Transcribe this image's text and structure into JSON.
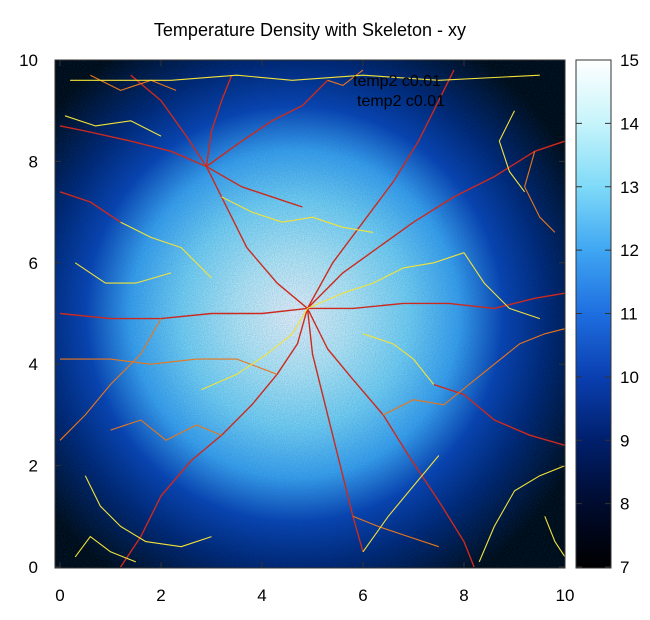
{
  "chart_data": {
    "type": "heatmap",
    "title": "Temperature Density with Skeleton - xy",
    "xlabel": "",
    "ylabel": "",
    "xlim": [
      0,
      10
    ],
    "ylim": [
      0,
      10
    ],
    "x_ticks": [
      0,
      2,
      4,
      6,
      8,
      10
    ],
    "y_ticks": [
      0,
      2,
      4,
      6,
      8,
      10
    ],
    "colorbar": {
      "range": [
        7,
        15
      ],
      "ticks": [
        7,
        8,
        9,
        10,
        11,
        12,
        13,
        14,
        15
      ],
      "colormap": [
        "#000000",
        "#000b2e",
        "#001f6b",
        "#0a3fb0",
        "#1e6ee0",
        "#3fa6f2",
        "#7fdaf8",
        "#c6f4fb",
        "#ffffff"
      ]
    },
    "density": {
      "peak_center": [
        4.7,
        5.0
      ],
      "peak_value": 15,
      "background_value": 7
    },
    "legend": {
      "placement": "top-center",
      "entries": [
        "temp2 c0.01",
        "temp2 c0.01"
      ]
    },
    "skeleton_colors": {
      "red": "#cc2a1e",
      "orange": "#e8761c",
      "yellow": "#f2e23a"
    },
    "skeleton": [
      {
        "color": "red",
        "points": [
          [
            4.9,
            5.1
          ],
          [
            4.3,
            5.6
          ],
          [
            3.7,
            6.3
          ],
          [
            3.2,
            7.3
          ],
          [
            2.9,
            7.9
          ]
        ]
      },
      {
        "color": "red",
        "points": [
          [
            2.9,
            7.9
          ],
          [
            3.0,
            8.6
          ],
          [
            3.2,
            9.2
          ],
          [
            3.4,
            9.7
          ]
        ]
      },
      {
        "color": "red",
        "points": [
          [
            2.9,
            7.9
          ],
          [
            2.2,
            8.2
          ],
          [
            1.4,
            8.4
          ],
          [
            0.5,
            8.6
          ],
          [
            0,
            8.7
          ]
        ]
      },
      {
        "color": "red",
        "points": [
          [
            2.9,
            7.9
          ],
          [
            3.6,
            8.4
          ],
          [
            4.2,
            8.8
          ],
          [
            4.8,
            9.1
          ],
          [
            5.3,
            9.6
          ]
        ]
      },
      {
        "color": "red",
        "points": [
          [
            2.9,
            7.9
          ],
          [
            2.5,
            8.5
          ],
          [
            2.0,
            9.2
          ],
          [
            1.4,
            9.7
          ]
        ]
      },
      {
        "color": "red",
        "points": [
          [
            4.9,
            5.1
          ],
          [
            5.6,
            5.8
          ],
          [
            6.3,
            6.3
          ],
          [
            7.0,
            6.8
          ],
          [
            7.8,
            7.3
          ],
          [
            8.6,
            7.7
          ],
          [
            9.4,
            8.2
          ],
          [
            10,
            8.4
          ]
        ]
      },
      {
        "color": "red",
        "points": [
          [
            4.9,
            5.1
          ],
          [
            4.0,
            5.0
          ],
          [
            3.0,
            5.0
          ],
          [
            2.0,
            4.9
          ],
          [
            1.0,
            4.9
          ],
          [
            0,
            5.0
          ]
        ]
      },
      {
        "color": "red",
        "points": [
          [
            4.9,
            5.1
          ],
          [
            5.8,
            5.1
          ],
          [
            6.8,
            5.2
          ],
          [
            7.7,
            5.2
          ],
          [
            8.6,
            5.1
          ],
          [
            9.4,
            5.3
          ],
          [
            10,
            5.4
          ]
        ]
      },
      {
        "color": "red",
        "points": [
          [
            4.9,
            5.1
          ],
          [
            4.7,
            4.4
          ],
          [
            4.3,
            3.8
          ],
          [
            3.8,
            3.2
          ],
          [
            3.2,
            2.6
          ],
          [
            2.6,
            2.1
          ],
          [
            2.0,
            1.4
          ],
          [
            1.6,
            0.6
          ],
          [
            1.2,
            0
          ]
        ]
      },
      {
        "color": "red",
        "points": [
          [
            4.9,
            5.1
          ],
          [
            5.3,
            4.3
          ],
          [
            5.8,
            3.7
          ],
          [
            6.4,
            3.0
          ],
          [
            6.9,
            2.2
          ],
          [
            7.5,
            1.3
          ],
          [
            8.0,
            0.5
          ],
          [
            8.2,
            0
          ]
        ]
      },
      {
        "color": "red",
        "points": [
          [
            4.9,
            5.1
          ],
          [
            5.0,
            4.2
          ],
          [
            5.2,
            3.4
          ],
          [
            5.4,
            2.6
          ],
          [
            5.6,
            1.8
          ],
          [
            5.8,
            1.0
          ],
          [
            6.0,
            0.3
          ]
        ]
      },
      {
        "color": "red",
        "points": [
          [
            4.9,
            5.1
          ],
          [
            5.4,
            6.0
          ],
          [
            6.0,
            6.8
          ],
          [
            6.6,
            7.6
          ],
          [
            7.1,
            8.4
          ],
          [
            7.5,
            9.2
          ],
          [
            7.8,
            9.8
          ]
        ]
      },
      {
        "color": "red",
        "points": [
          [
            2.9,
            7.9
          ],
          [
            3.6,
            7.5
          ],
          [
            4.2,
            7.3
          ],
          [
            4.8,
            7.1
          ]
        ]
      },
      {
        "color": "red",
        "points": [
          [
            0,
            7.4
          ],
          [
            0.6,
            7.2
          ],
          [
            1.2,
            6.8
          ]
        ]
      },
      {
        "color": "red",
        "points": [
          [
            10,
            2.4
          ],
          [
            9.3,
            2.6
          ],
          [
            8.6,
            2.9
          ],
          [
            8.0,
            3.4
          ],
          [
            7.4,
            3.6
          ]
        ]
      },
      {
        "color": "orange",
        "points": [
          [
            5.3,
            9.6
          ],
          [
            5.6,
            9.5
          ],
          [
            6.0,
            9.8
          ]
        ]
      },
      {
        "color": "orange",
        "points": [
          [
            6.4,
            3.0
          ],
          [
            7.0,
            3.3
          ],
          [
            7.6,
            3.2
          ],
          [
            8.1,
            3.6
          ],
          [
            8.6,
            4.0
          ],
          [
            9.1,
            4.4
          ],
          [
            9.6,
            4.6
          ],
          [
            10,
            4.7
          ]
        ]
      },
      {
        "color": "orange",
        "points": [
          [
            2.0,
            4.9
          ],
          [
            1.6,
            4.2
          ],
          [
            1.0,
            3.6
          ],
          [
            0.5,
            3.0
          ],
          [
            0,
            2.5
          ]
        ]
      },
      {
        "color": "orange",
        "points": [
          [
            5.8,
            1.0
          ],
          [
            6.3,
            0.8
          ],
          [
            6.9,
            0.6
          ],
          [
            7.5,
            0.4
          ]
        ]
      },
      {
        "color": "orange",
        "points": [
          [
            0.6,
            9.7
          ],
          [
            1.2,
            9.4
          ],
          [
            1.8,
            9.6
          ],
          [
            2.3,
            9.4
          ]
        ]
      },
      {
        "color": "orange",
        "points": [
          [
            9.4,
            8.2
          ],
          [
            9.2,
            7.5
          ],
          [
            9.5,
            6.9
          ],
          [
            9.8,
            6.6
          ]
        ]
      },
      {
        "color": "orange",
        "points": [
          [
            4.3,
            3.8
          ],
          [
            3.5,
            4.1
          ],
          [
            2.7,
            4.1
          ],
          [
            1.8,
            4.0
          ],
          [
            1.0,
            4.1
          ],
          [
            0,
            4.1
          ]
        ]
      },
      {
        "color": "orange",
        "points": [
          [
            3.2,
            2.6
          ],
          [
            2.7,
            2.8
          ],
          [
            2.1,
            2.5
          ],
          [
            1.6,
            2.9
          ],
          [
            1.0,
            2.7
          ]
        ]
      },
      {
        "color": "yellow",
        "points": [
          [
            0.2,
            9.6
          ],
          [
            1.0,
            9.6
          ],
          [
            2.2,
            9.6
          ],
          [
            3.5,
            9.7
          ],
          [
            4.6,
            9.6
          ],
          [
            6.0,
            9.7
          ],
          [
            7.5,
            9.6
          ],
          [
            9.5,
            9.7
          ]
        ]
      },
      {
        "color": "yellow",
        "points": [
          [
            0.1,
            8.9
          ],
          [
            0.7,
            8.7
          ],
          [
            1.4,
            8.8
          ],
          [
            2.0,
            8.5
          ]
        ]
      },
      {
        "color": "yellow",
        "points": [
          [
            3.2,
            7.3
          ],
          [
            3.8,
            7.0
          ],
          [
            4.4,
            6.8
          ],
          [
            5.0,
            6.9
          ],
          [
            5.6,
            6.7
          ],
          [
            6.2,
            6.6
          ]
        ]
      },
      {
        "color": "yellow",
        "points": [
          [
            4.9,
            5.1
          ],
          [
            5.6,
            5.4
          ],
          [
            6.2,
            5.6
          ],
          [
            6.8,
            5.9
          ],
          [
            7.4,
            6.0
          ],
          [
            8.0,
            6.2
          ]
        ]
      },
      {
        "color": "yellow",
        "points": [
          [
            4.9,
            5.1
          ],
          [
            4.6,
            4.6
          ],
          [
            4.1,
            4.2
          ],
          [
            3.5,
            3.8
          ],
          [
            2.8,
            3.5
          ]
        ]
      },
      {
        "color": "yellow",
        "points": [
          [
            0.5,
            1.8
          ],
          [
            0.8,
            1.2
          ],
          [
            1.2,
            0.8
          ],
          [
            1.7,
            0.5
          ],
          [
            2.4,
            0.4
          ],
          [
            3.0,
            0.6
          ]
        ]
      },
      {
        "color": "yellow",
        "points": [
          [
            0.3,
            0.2
          ],
          [
            0.6,
            0.6
          ],
          [
            1.0,
            0.3
          ],
          [
            1.5,
            0.1
          ]
        ]
      },
      {
        "color": "yellow",
        "points": [
          [
            8.3,
            0.1
          ],
          [
            8.6,
            0.8
          ],
          [
            9.0,
            1.5
          ],
          [
            9.5,
            1.8
          ],
          [
            10,
            2.0
          ]
        ]
      },
      {
        "color": "yellow",
        "points": [
          [
            8.0,
            6.2
          ],
          [
            8.4,
            5.6
          ],
          [
            8.9,
            5.1
          ],
          [
            9.5,
            4.9
          ]
        ]
      },
      {
        "color": "yellow",
        "points": [
          [
            7.4,
            3.6
          ],
          [
            7.0,
            4.1
          ],
          [
            6.6,
            4.4
          ],
          [
            6.0,
            4.6
          ]
        ]
      },
      {
        "color": "yellow",
        "points": [
          [
            9.0,
            9.0
          ],
          [
            8.7,
            8.4
          ],
          [
            8.9,
            7.8
          ],
          [
            9.2,
            7.4
          ]
        ]
      },
      {
        "color": "yellow",
        "points": [
          [
            0.3,
            6.0
          ],
          [
            0.9,
            5.6
          ],
          [
            1.5,
            5.6
          ],
          [
            2.2,
            5.8
          ]
        ]
      },
      {
        "color": "yellow",
        "points": [
          [
            6.0,
            0.3
          ],
          [
            6.5,
            1.0
          ],
          [
            7.0,
            1.6
          ],
          [
            7.5,
            2.2
          ]
        ]
      },
      {
        "color": "yellow",
        "points": [
          [
            1.2,
            6.8
          ],
          [
            1.8,
            6.5
          ],
          [
            2.4,
            6.3
          ],
          [
            3.0,
            5.7
          ]
        ]
      },
      {
        "color": "yellow",
        "points": [
          [
            9.6,
            1.0
          ],
          [
            9.8,
            0.5
          ],
          [
            10,
            0.2
          ]
        ]
      }
    ]
  }
}
